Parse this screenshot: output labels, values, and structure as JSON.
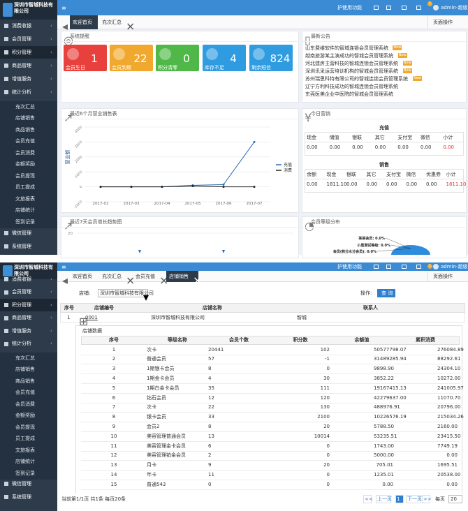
{
  "app": {
    "company": "深圳市智城科技有限公司",
    "help": "护使用功能",
    "user": "admin-超级管理员",
    "page_ops": "页面操作",
    "notice_count": "1"
  },
  "sidebar": {
    "menu_top": [
      "消费收银",
      "会员管理",
      "积分管理",
      "商品管理",
      "增值服务",
      "统计分析"
    ],
    "submenu": [
      "充次汇总",
      "店铺销售",
      "商品销售",
      "会员充值",
      "会员消费",
      "金额奖励",
      "会员提现",
      "员工提成",
      "文旅报表",
      "店铺统计",
      "签到记录"
    ],
    "menu_bottom": [
      "微信管理",
      "系统管理"
    ]
  },
  "screen1": {
    "tabs": [
      "欢迎首页",
      "充次汇总"
    ],
    "reminder": {
      "title": "系统提醒",
      "stats": [
        {
          "label": "会员生日",
          "value": 1,
          "color": "#e8413d"
        },
        {
          "label": "会员到期",
          "value": 22,
          "color": "#f0a92e"
        },
        {
          "label": "积分清零",
          "value": 0,
          "color": "#50b848"
        },
        {
          "label": "库存不足",
          "value": 4,
          "color": "#2f9be0"
        },
        {
          "label": "剩余短信",
          "value": 824,
          "color": "#2f9be0"
        }
      ]
    },
    "notices": {
      "title": "最新公告",
      "items": [
        {
          "text": "山东费维软件的智城连锁会员管理系统",
          "badge": "New"
        },
        {
          "text": "越南旅游某主演成功的智城会员管理系统",
          "badge": "New"
        },
        {
          "text": "河北建房主营科技的智城连锁会员管理系统",
          "badge": "New"
        },
        {
          "text": "深圳讯采运营培训机构的智城会员管理系统",
          "badge": "New"
        },
        {
          "text": "苏州瑞思科特有限公司的智城连锁会员管理系统",
          "badge": "New"
        },
        {
          "text": "辽宁方利科技成功的智城连锁会员管理系统"
        },
        {
          "text": "东莞医美企业中医院的智城会员管理系统"
        }
      ]
    },
    "today": {
      "title": "今日营销",
      "recharge": {
        "title": "充值",
        "headers": [
          "现金",
          "储值",
          "银联",
          "其它",
          "支付宝",
          "微信",
          "小计"
        ],
        "values": [
          "0.00",
          "0.00",
          "0.00",
          "0.00",
          "0.00",
          "0.00",
          "0.00"
        ]
      },
      "sales": {
        "title": "销售",
        "headers": [
          "余额",
          "现金",
          "银联",
          "其它",
          "支付宝",
          "微信",
          "优惠券",
          "小计"
        ],
        "values": [
          "0.00",
          "1811.10",
          "0.00",
          "0.00",
          "0.00",
          "0.00",
          "0.00",
          "1811.10"
        ]
      }
    },
    "growth": {
      "title": "最近7天会员增长趋势图",
      "ytick": "20"
    },
    "levels": {
      "title": "会员等级分布",
      "labels": [
        "某某会员: 0.0%",
        "小黑测试等级: 0.0%",
        "会员(积分水分会员): 0.0%"
      ]
    }
  },
  "chart_data": {
    "type": "line",
    "title": "最近6个月营业销售表",
    "y_label": "营业额",
    "categories": [
      "2017-02",
      "2017-03",
      "2017-04",
      "2017-05",
      "2017-06",
      "2017-07"
    ],
    "series": [
      {
        "name": "充值",
        "color": "#2b6cb3",
        "values": [
          0,
          0,
          0,
          100,
          150,
          3000
        ]
      },
      {
        "name": "消费",
        "color": "#222222",
        "values": [
          0,
          0,
          0,
          50,
          0,
          0
        ]
      }
    ],
    "ylim": [
      -1000,
      4000
    ],
    "yticks": [
      -1000,
      0,
      1000,
      2000,
      3000,
      4000
    ]
  },
  "screen2": {
    "tabs": [
      "欢迎首页",
      "充次汇总",
      "会员充值",
      "店铺销售"
    ],
    "filter": {
      "store_label": "店铺:",
      "store_value": "深圳市智城科技有限公司",
      "op_label": "操作:",
      "button": "查 询"
    },
    "stores": {
      "headers": [
        "序号",
        "店铺编号",
        "店铺名称",
        "联系人"
      ],
      "rows": [
        [
          "1",
          "0001",
          "深圳市智城科技有限公司",
          "智城"
        ]
      ]
    },
    "store_data": {
      "title": "店铺数据",
      "headers": [
        "序号",
        "等级名称",
        "会员个数",
        "积分数",
        "余额值",
        "累积消费"
      ],
      "rows": [
        [
          "1",
          "次卡",
          "20441",
          "102",
          "50577798.07",
          "276084.89"
        ],
        [
          "2",
          "普通会员",
          "57",
          "-1",
          "31489285.94",
          "88292.61"
        ],
        [
          "3",
          "1期银卡会员",
          "8",
          "0",
          "9898.90",
          "24304.10"
        ],
        [
          "4",
          "1期金卡会员",
          "4",
          "30",
          "3852.22",
          "10272.00"
        ],
        [
          "5",
          "1期白金卡会员",
          "35",
          "111",
          "19167415.13",
          "241005.97"
        ],
        [
          "6",
          "钻石会员",
          "12",
          "120",
          "42279637.00",
          "11070.70"
        ],
        [
          "7",
          "次卡",
          "22",
          "130",
          "488976.91",
          "20796.00"
        ],
        [
          "8",
          "银卡会员",
          "33",
          "2100",
          "10226576.19",
          "215034.26"
        ],
        [
          "9",
          "会员2",
          "8",
          "20",
          "5788.50",
          "2160.00"
        ],
        [
          "10",
          "美容管理普通会员",
          "13",
          "10014",
          "53235.51",
          "23415.50"
        ],
        [
          "11",
          "美容管理金卡会员",
          "6",
          "0",
          "1743.00",
          "7749.19"
        ],
        [
          "12",
          "美容管理铂金会员",
          "2",
          "0",
          "5000.00",
          "0.00"
        ],
        [
          "13",
          "月卡",
          "9",
          "20",
          "705.01",
          "1695.51"
        ],
        [
          "14",
          "年卡",
          "11",
          "0",
          "1235.01",
          "20538.00"
        ],
        [
          "15",
          "普通543",
          "0",
          "0",
          "0.00",
          "0.00"
        ]
      ]
    },
    "footer": {
      "summary": "当前第1/1页 共1条 每页20条",
      "first": "<<",
      "prev": "上一页",
      "page": "1",
      "next": "下一页",
      "last": ">>",
      "per_page": "每页",
      "per_page_value": "20"
    }
  }
}
